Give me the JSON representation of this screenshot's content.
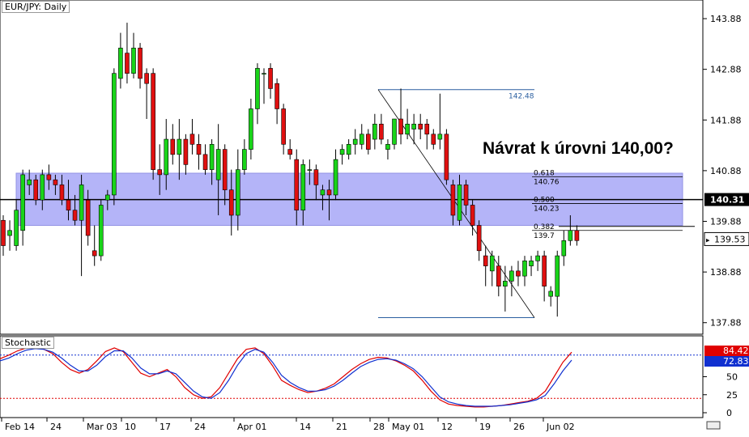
{
  "chart_data": {
    "type": "candlestick",
    "symbol": "EUR/JPY",
    "timeframe": "Daily",
    "title": "EUR/JPY: Daily",
    "annotation": "Návrat k úrovni 140,00?",
    "y_axis_ticks": [
      "143.88",
      "142.88",
      "141.88",
      "140.88",
      "139.88",
      "138.88",
      "137.88"
    ],
    "ylim": [
      137.7,
      144.2
    ],
    "x_tick_labels": [
      "Feb 14",
      "24",
      "Mar 03",
      "10",
      "17",
      "24",
      "Apr 01",
      "14",
      "21",
      "28",
      "May 01",
      "12",
      "19",
      "26",
      "Jun 02"
    ],
    "price_labels": {
      "current": "140.31",
      "last": "139.53"
    },
    "horizontal_line": 140.31,
    "zone": {
      "low": 139.8,
      "high": 140.83,
      "color": "#a7a7f7"
    },
    "fibonacci": {
      "high_label": "142.48",
      "high": 142.48,
      "low": 137.98,
      "levels": [
        {
          "ratio": "0.618",
          "price": "140.76"
        },
        {
          "ratio": "0.500",
          "price": "140.23"
        },
        {
          "ratio": "0.382",
          "price": "139.7"
        }
      ]
    },
    "candles": [
      [
        139.9,
        140.0,
        139.2,
        139.4
      ],
      [
        139.6,
        139.9,
        139.3,
        139.7
      ],
      [
        139.4,
        140.3,
        139.3,
        140.1
      ],
      [
        139.7,
        140.9,
        139.4,
        140.8
      ],
      [
        140.6,
        140.9,
        140.4,
        140.7
      ],
      [
        140.7,
        140.8,
        140.2,
        140.3
      ],
      [
        140.3,
        140.9,
        140.1,
        140.8
      ],
      [
        140.8,
        141.0,
        140.5,
        140.7
      ],
      [
        140.7,
        140.8,
        140.4,
        140.6
      ],
      [
        140.6,
        140.8,
        140.2,
        140.3
      ],
      [
        140.3,
        140.7,
        139.9,
        140.1
      ],
      [
        140.1,
        140.4,
        139.8,
        139.9
      ],
      [
        139.9,
        140.8,
        138.8,
        140.6
      ],
      [
        140.3,
        140.5,
        139.4,
        139.6
      ],
      [
        139.3,
        139.8,
        139.0,
        139.2
      ],
      [
        139.2,
        140.3,
        139.1,
        140.2
      ],
      [
        140.3,
        140.5,
        140.1,
        140.4
      ],
      [
        140.4,
        142.9,
        140.2,
        142.8
      ],
      [
        142.7,
        143.6,
        142.5,
        143.3
      ],
      [
        143.2,
        143.8,
        142.6,
        142.8
      ],
      [
        142.8,
        143.6,
        142.7,
        143.3
      ],
      [
        143.3,
        143.4,
        142.5,
        142.7
      ],
      [
        142.8,
        142.9,
        141.9,
        142.6
      ],
      [
        142.8,
        142.9,
        140.7,
        140.9
      ],
      [
        140.9,
        141.4,
        140.4,
        140.8
      ],
      [
        140.8,
        141.9,
        140.5,
        141.5
      ],
      [
        141.5,
        141.8,
        141.0,
        141.2
      ],
      [
        141.2,
        141.9,
        140.7,
        141.5
      ],
      [
        141.5,
        141.6,
        140.8,
        141.0
      ],
      [
        141.6,
        141.9,
        141.2,
        141.4
      ],
      [
        141.4,
        141.6,
        140.9,
        141.2
      ],
      [
        141.2,
        141.4,
        140.8,
        140.9
      ],
      [
        140.9,
        141.5,
        140.6,
        141.4
      ],
      [
        140.7,
        141.8,
        140.0,
        141.3
      ],
      [
        141.3,
        141.4,
        140.2,
        140.5
      ],
      [
        140.5,
        140.9,
        139.6,
        140.0
      ],
      [
        140.0,
        141.3,
        139.7,
        140.9
      ],
      [
        140.9,
        141.5,
        140.8,
        141.3
      ],
      [
        141.3,
        142.3,
        141.1,
        142.1
      ],
      [
        142.1,
        143.0,
        141.8,
        142.9
      ],
      [
        142.8,
        142.9,
        142.2,
        142.8
      ],
      [
        142.9,
        143.0,
        142.3,
        142.5
      ],
      [
        142.6,
        142.7,
        141.8,
        142.1
      ],
      [
        142.1,
        142.2,
        141.2,
        141.4
      ],
      [
        141.3,
        141.5,
        141.1,
        141.2
      ],
      [
        141.1,
        141.3,
        139.8,
        140.1
      ],
      [
        140.1,
        141.1,
        139.8,
        141.0
      ],
      [
        140.9,
        141.1,
        140.6,
        140.9
      ],
      [
        140.9,
        141.0,
        140.3,
        140.6
      ],
      [
        140.4,
        140.6,
        140.1,
        140.5
      ],
      [
        140.5,
        140.7,
        139.9,
        140.4
      ],
      [
        140.4,
        141.3,
        140.3,
        141.1
      ],
      [
        141.2,
        141.4,
        141.0,
        141.3
      ],
      [
        141.2,
        141.5,
        141.1,
        141.4
      ],
      [
        141.4,
        141.7,
        141.2,
        141.5
      ],
      [
        141.4,
        141.8,
        141.3,
        141.6
      ],
      [
        141.6,
        141.7,
        141.2,
        141.3
      ],
      [
        141.5,
        142.0,
        141.3,
        141.8
      ],
      [
        141.8,
        142.0,
        141.4,
        141.5
      ],
      [
        141.3,
        141.5,
        141.1,
        141.4
      ],
      [
        141.4,
        141.9,
        141.3,
        141.9
      ],
      [
        141.9,
        142.5,
        141.4,
        141.6
      ],
      [
        141.6,
        142.1,
        141.5,
        141.8
      ],
      [
        141.7,
        142.0,
        141.4,
        141.8
      ],
      [
        141.8,
        142.0,
        141.5,
        141.7
      ],
      [
        141.8,
        141.9,
        141.3,
        141.6
      ],
      [
        141.6,
        141.7,
        141.3,
        141.4
      ],
      [
        141.5,
        142.4,
        141.3,
        141.6
      ],
      [
        141.6,
        141.7,
        140.6,
        140.7
      ],
      [
        140.6,
        140.7,
        139.8,
        140.0
      ],
      [
        139.9,
        140.8,
        139.8,
        140.6
      ],
      [
        140.6,
        140.7,
        140.0,
        140.2
      ],
      [
        140.2,
        140.3,
        139.6,
        139.8
      ],
      [
        139.8,
        139.9,
        139.1,
        139.3
      ],
      [
        139.2,
        139.4,
        138.6,
        139.0
      ],
      [
        138.9,
        139.3,
        138.6,
        139.2
      ],
      [
        139.0,
        139.2,
        138.4,
        138.6
      ],
      [
        138.6,
        139.0,
        138.1,
        138.7
      ],
      [
        138.7,
        139.0,
        138.4,
        138.9
      ],
      [
        138.9,
        139.1,
        138.6,
        138.8
      ],
      [
        138.8,
        139.2,
        138.6,
        139.1
      ],
      [
        139.0,
        139.2,
        138.8,
        139.1
      ],
      [
        139.1,
        139.3,
        138.9,
        139.2
      ],
      [
        139.2,
        139.3,
        138.3,
        138.6
      ],
      [
        138.4,
        138.6,
        138.2,
        138.5
      ],
      [
        138.4,
        139.3,
        138.0,
        139.2
      ],
      [
        139.2,
        139.7,
        139.0,
        139.5
      ],
      [
        139.5,
        140.0,
        139.4,
        139.7
      ],
      [
        139.7,
        139.8,
        139.4,
        139.5
      ]
    ],
    "stochastic": {
      "label": "Stochastic",
      "upper_level": 80,
      "lower_level": 20,
      "ticks": [
        "50",
        "25",
        "0"
      ],
      "k_label": "84.42",
      "d_label": "72.83",
      "k_color": "#e00000",
      "d_color": "#1030d0",
      "k": [
        75,
        80,
        86,
        90,
        91,
        88,
        82,
        70,
        60,
        55,
        60,
        72,
        85,
        90,
        85,
        70,
        55,
        50,
        55,
        60,
        50,
        35,
        25,
        20,
        22,
        35,
        55,
        75,
        88,
        90,
        82,
        65,
        45,
        38,
        32,
        28,
        30,
        34,
        40,
        50,
        60,
        68,
        74,
        77,
        76,
        72,
        66,
        58,
        45,
        30,
        18,
        12,
        10,
        9,
        8,
        8,
        9,
        10,
        12,
        14,
        16,
        20,
        30,
        50,
        70,
        84
      ],
      "d": [
        72,
        76,
        82,
        87,
        89,
        88,
        84,
        76,
        66,
        58,
        58,
        66,
        78,
        86,
        86,
        76,
        62,
        54,
        54,
        58,
        54,
        42,
        30,
        22,
        20,
        28,
        45,
        66,
        82,
        88,
        84,
        70,
        52,
        42,
        35,
        30,
        30,
        32,
        37,
        45,
        55,
        64,
        70,
        74,
        75,
        73,
        68,
        61,
        50,
        36,
        22,
        15,
        12,
        10,
        9,
        9,
        9,
        10,
        11,
        13,
        15,
        18,
        24,
        40,
        58,
        73
      ]
    }
  }
}
